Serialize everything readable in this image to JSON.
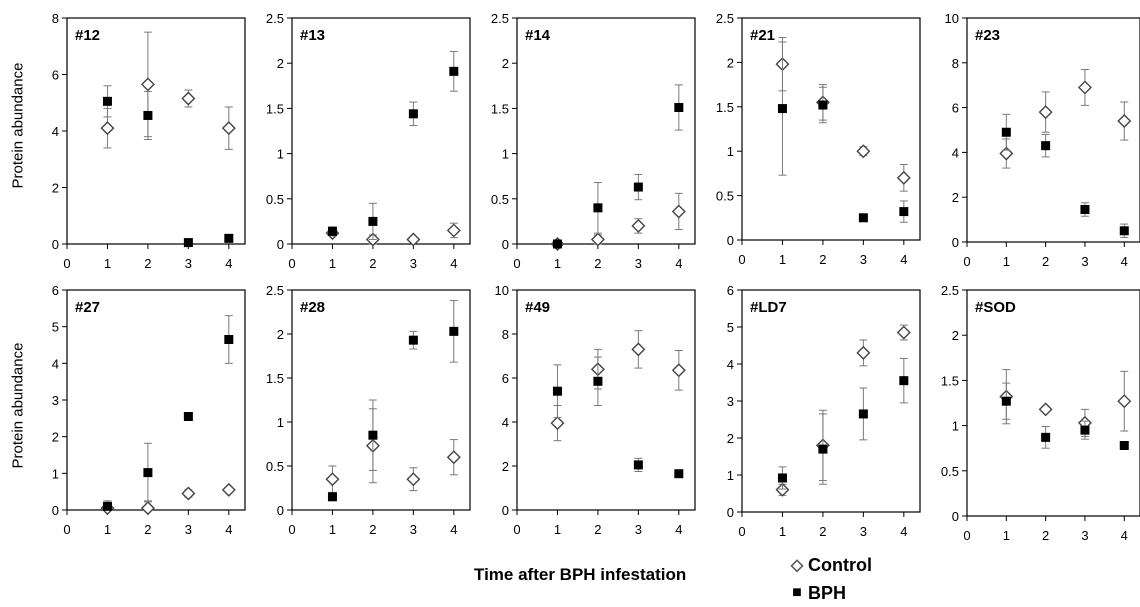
{
  "figure": {
    "y_axis_label": "Protein abundance",
    "x_axis_label": "Time after BPH infestation",
    "legend": [
      {
        "label": "Control",
        "symbol": "◇",
        "color": "#555555"
      },
      {
        "label": "BPH",
        "symbol": "■",
        "color": "#000000"
      }
    ]
  },
  "chart_data": [
    {
      "type": "scatter",
      "title": "#12",
      "xlim": [
        0,
        4.4
      ],
      "ylim": [
        0,
        8
      ],
      "xticks": [
        0,
        1,
        2,
        3,
        4
      ],
      "yticks": [
        0,
        2,
        4,
        6,
        8
      ],
      "series": [
        {
          "name": "Control",
          "x": [
            1,
            2,
            3,
            4
          ],
          "y": [
            4.1,
            5.65,
            5.15,
            4.1
          ],
          "err": [
            0.7,
            1.85,
            0.3,
            0.75
          ]
        },
        {
          "name": "BPH",
          "x": [
            1,
            2,
            3,
            4
          ],
          "y": [
            5.05,
            4.55,
            0.05,
            0.2
          ],
          "err": [
            0.55,
            0.85,
            0.0,
            0.0
          ]
        }
      ]
    },
    {
      "type": "scatter",
      "title": "#13",
      "xlim": [
        0,
        4.4
      ],
      "ylim": [
        0,
        2.5
      ],
      "xticks": [
        0,
        1,
        2,
        3,
        4
      ],
      "yticks": [
        0,
        0.5,
        1,
        1.5,
        2,
        2.5
      ],
      "series": [
        {
          "name": "Control",
          "x": [
            1,
            2,
            3,
            4
          ],
          "y": [
            0.12,
            0.05,
            0.05,
            0.15
          ],
          "err": [
            0.03,
            0.05,
            0.02,
            0.08
          ]
        },
        {
          "name": "BPH",
          "x": [
            1,
            2,
            3,
            4
          ],
          "y": [
            0.14,
            0.25,
            1.44,
            1.91
          ],
          "err": [
            0.05,
            0.2,
            0.13,
            0.22
          ]
        }
      ]
    },
    {
      "type": "scatter",
      "title": "#14",
      "xlim": [
        0,
        4.4
      ],
      "ylim": [
        0,
        2.5
      ],
      "xticks": [
        0,
        1,
        2,
        3,
        4
      ],
      "yticks": [
        0,
        0.5,
        1,
        1.5,
        2,
        2.5
      ],
      "series": [
        {
          "name": "Control",
          "x": [
            1,
            2,
            3,
            4
          ],
          "y": [
            0,
            0.05,
            0.2,
            0.36
          ],
          "err": [
            0.02,
            0.05,
            0.08,
            0.2
          ]
        },
        {
          "name": "BPH",
          "x": [
            1,
            2,
            3,
            4
          ],
          "y": [
            0,
            0.4,
            0.63,
            1.51
          ],
          "err": [
            0.02,
            0.28,
            0.14,
            0.25
          ]
        }
      ]
    },
    {
      "type": "scatter",
      "title": "#21",
      "xlim": [
        0,
        4.4
      ],
      "ylim": [
        0,
        2.5
      ],
      "xticks": [
        0,
        1,
        2,
        3,
        4
      ],
      "yticks": [
        0,
        0.5,
        1,
        1.5,
        2,
        2.5
      ],
      "series": [
        {
          "name": "Control",
          "x": [
            1,
            2,
            3,
            4
          ],
          "y": [
            1.98,
            1.55,
            1.0,
            0.7
          ],
          "err": [
            0.3,
            0.2,
            0.05,
            0.15
          ]
        },
        {
          "name": "BPH",
          "x": [
            1,
            2,
            3,
            4
          ],
          "y": [
            1.48,
            1.52,
            0.25,
            0.32
          ],
          "err": [
            0.75,
            0.2,
            0.0,
            0.12
          ]
        }
      ]
    },
    {
      "type": "scatter",
      "title": "#23",
      "xlim": [
        0,
        4.4
      ],
      "ylim": [
        0,
        10
      ],
      "xticks": [
        0,
        1,
        2,
        3,
        4
      ],
      "yticks": [
        0,
        2,
        4,
        6,
        8,
        10
      ],
      "series": [
        {
          "name": "Control",
          "x": [
            1,
            2,
            3,
            4
          ],
          "y": [
            3.95,
            5.8,
            6.9,
            5.4
          ],
          "err": [
            0.65,
            0.9,
            0.8,
            0.85
          ]
        },
        {
          "name": "BPH",
          "x": [
            1,
            2,
            3,
            4
          ],
          "y": [
            4.9,
            4.3,
            1.45,
            0.5
          ],
          "err": [
            0.8,
            0.5,
            0.3,
            0.3
          ]
        }
      ]
    },
    {
      "type": "scatter",
      "title": "#27",
      "xlim": [
        0,
        4.4
      ],
      "ylim": [
        0,
        6
      ],
      "xticks": [
        0,
        1,
        2,
        3,
        4
      ],
      "yticks": [
        0,
        1,
        2,
        3,
        4,
        5,
        6
      ],
      "series": [
        {
          "name": "Control",
          "x": [
            1,
            2,
            3,
            4
          ],
          "y": [
            0.05,
            0.05,
            0.45,
            0.55
          ],
          "err": [
            0.1,
            0.2,
            0.1,
            0.05
          ]
        },
        {
          "name": "BPH",
          "x": [
            1,
            2,
            3,
            4
          ],
          "y": [
            0.1,
            1.02,
            2.55,
            4.65
          ],
          "err": [
            0.15,
            0.8,
            0.0,
            0.65
          ]
        }
      ]
    },
    {
      "type": "scatter",
      "title": "#28",
      "xlim": [
        0,
        4.4
      ],
      "ylim": [
        0,
        2.5
      ],
      "xticks": [
        0,
        1,
        2,
        3,
        4
      ],
      "yticks": [
        0,
        0.5,
        1,
        1.5,
        2,
        2.5
      ],
      "series": [
        {
          "name": "Control",
          "x": [
            1,
            2,
            3,
            4
          ],
          "y": [
            0.35,
            0.73,
            0.35,
            0.6
          ],
          "err": [
            0.15,
            0.42,
            0.13,
            0.2
          ]
        },
        {
          "name": "BPH",
          "x": [
            1,
            2,
            3,
            4
          ],
          "y": [
            0.15,
            0.85,
            1.93,
            2.03
          ],
          "err": [
            0.0,
            0.4,
            0.1,
            0.35
          ]
        }
      ]
    },
    {
      "type": "scatter",
      "title": "#49",
      "xlim": [
        0,
        4.4
      ],
      "ylim": [
        0,
        10
      ],
      "xticks": [
        0,
        1,
        2,
        3,
        4
      ],
      "yticks": [
        0,
        2,
        4,
        6,
        8,
        10
      ],
      "series": [
        {
          "name": "Control",
          "x": [
            1,
            2,
            3,
            4
          ],
          "y": [
            3.95,
            6.4,
            7.3,
            6.35
          ],
          "err": [
            0.8,
            0.9,
            0.85,
            0.9
          ]
        },
        {
          "name": "BPH",
          "x": [
            1,
            2,
            3,
            4
          ],
          "y": [
            5.4,
            5.85,
            2.05,
            1.65
          ],
          "err": [
            1.2,
            1.1,
            0.3,
            0.0
          ]
        }
      ]
    },
    {
      "type": "scatter",
      "title": "#LD7",
      "xlim": [
        0,
        4.4
      ],
      "ylim": [
        0,
        6
      ],
      "xticks": [
        0,
        1,
        2,
        3,
        4
      ],
      "yticks": [
        0,
        1,
        2,
        3,
        4,
        5,
        6
      ],
      "series": [
        {
          "name": "Control",
          "x": [
            1,
            2,
            3,
            4
          ],
          "y": [
            0.6,
            1.8,
            4.3,
            4.85
          ],
          "err": [
            0.15,
            0.95,
            0.35,
            0.2
          ]
        },
        {
          "name": "BPH",
          "x": [
            1,
            2,
            3,
            4
          ],
          "y": [
            0.92,
            1.7,
            2.65,
            3.55
          ],
          "err": [
            0.3,
            0.95,
            0.7,
            0.6
          ]
        }
      ]
    },
    {
      "type": "scatter",
      "title": "#SOD",
      "xlim": [
        0,
        4.4
      ],
      "ylim": [
        0,
        2.5
      ],
      "xticks": [
        0,
        1,
        2,
        3,
        4
      ],
      "yticks": [
        0,
        0.5,
        1,
        1.5,
        2,
        2.5
      ],
      "series": [
        {
          "name": "Control",
          "x": [
            1,
            2,
            3,
            4
          ],
          "y": [
            1.32,
            1.18,
            1.03,
            1.27
          ],
          "err": [
            0.3,
            0.0,
            0.15,
            0.33
          ]
        },
        {
          "name": "BPH",
          "x": [
            1,
            2,
            3,
            4
          ],
          "y": [
            1.27,
            0.87,
            0.95,
            0.78
          ],
          "err": [
            0.2,
            0.12,
            0.1,
            0.0
          ]
        }
      ]
    }
  ]
}
